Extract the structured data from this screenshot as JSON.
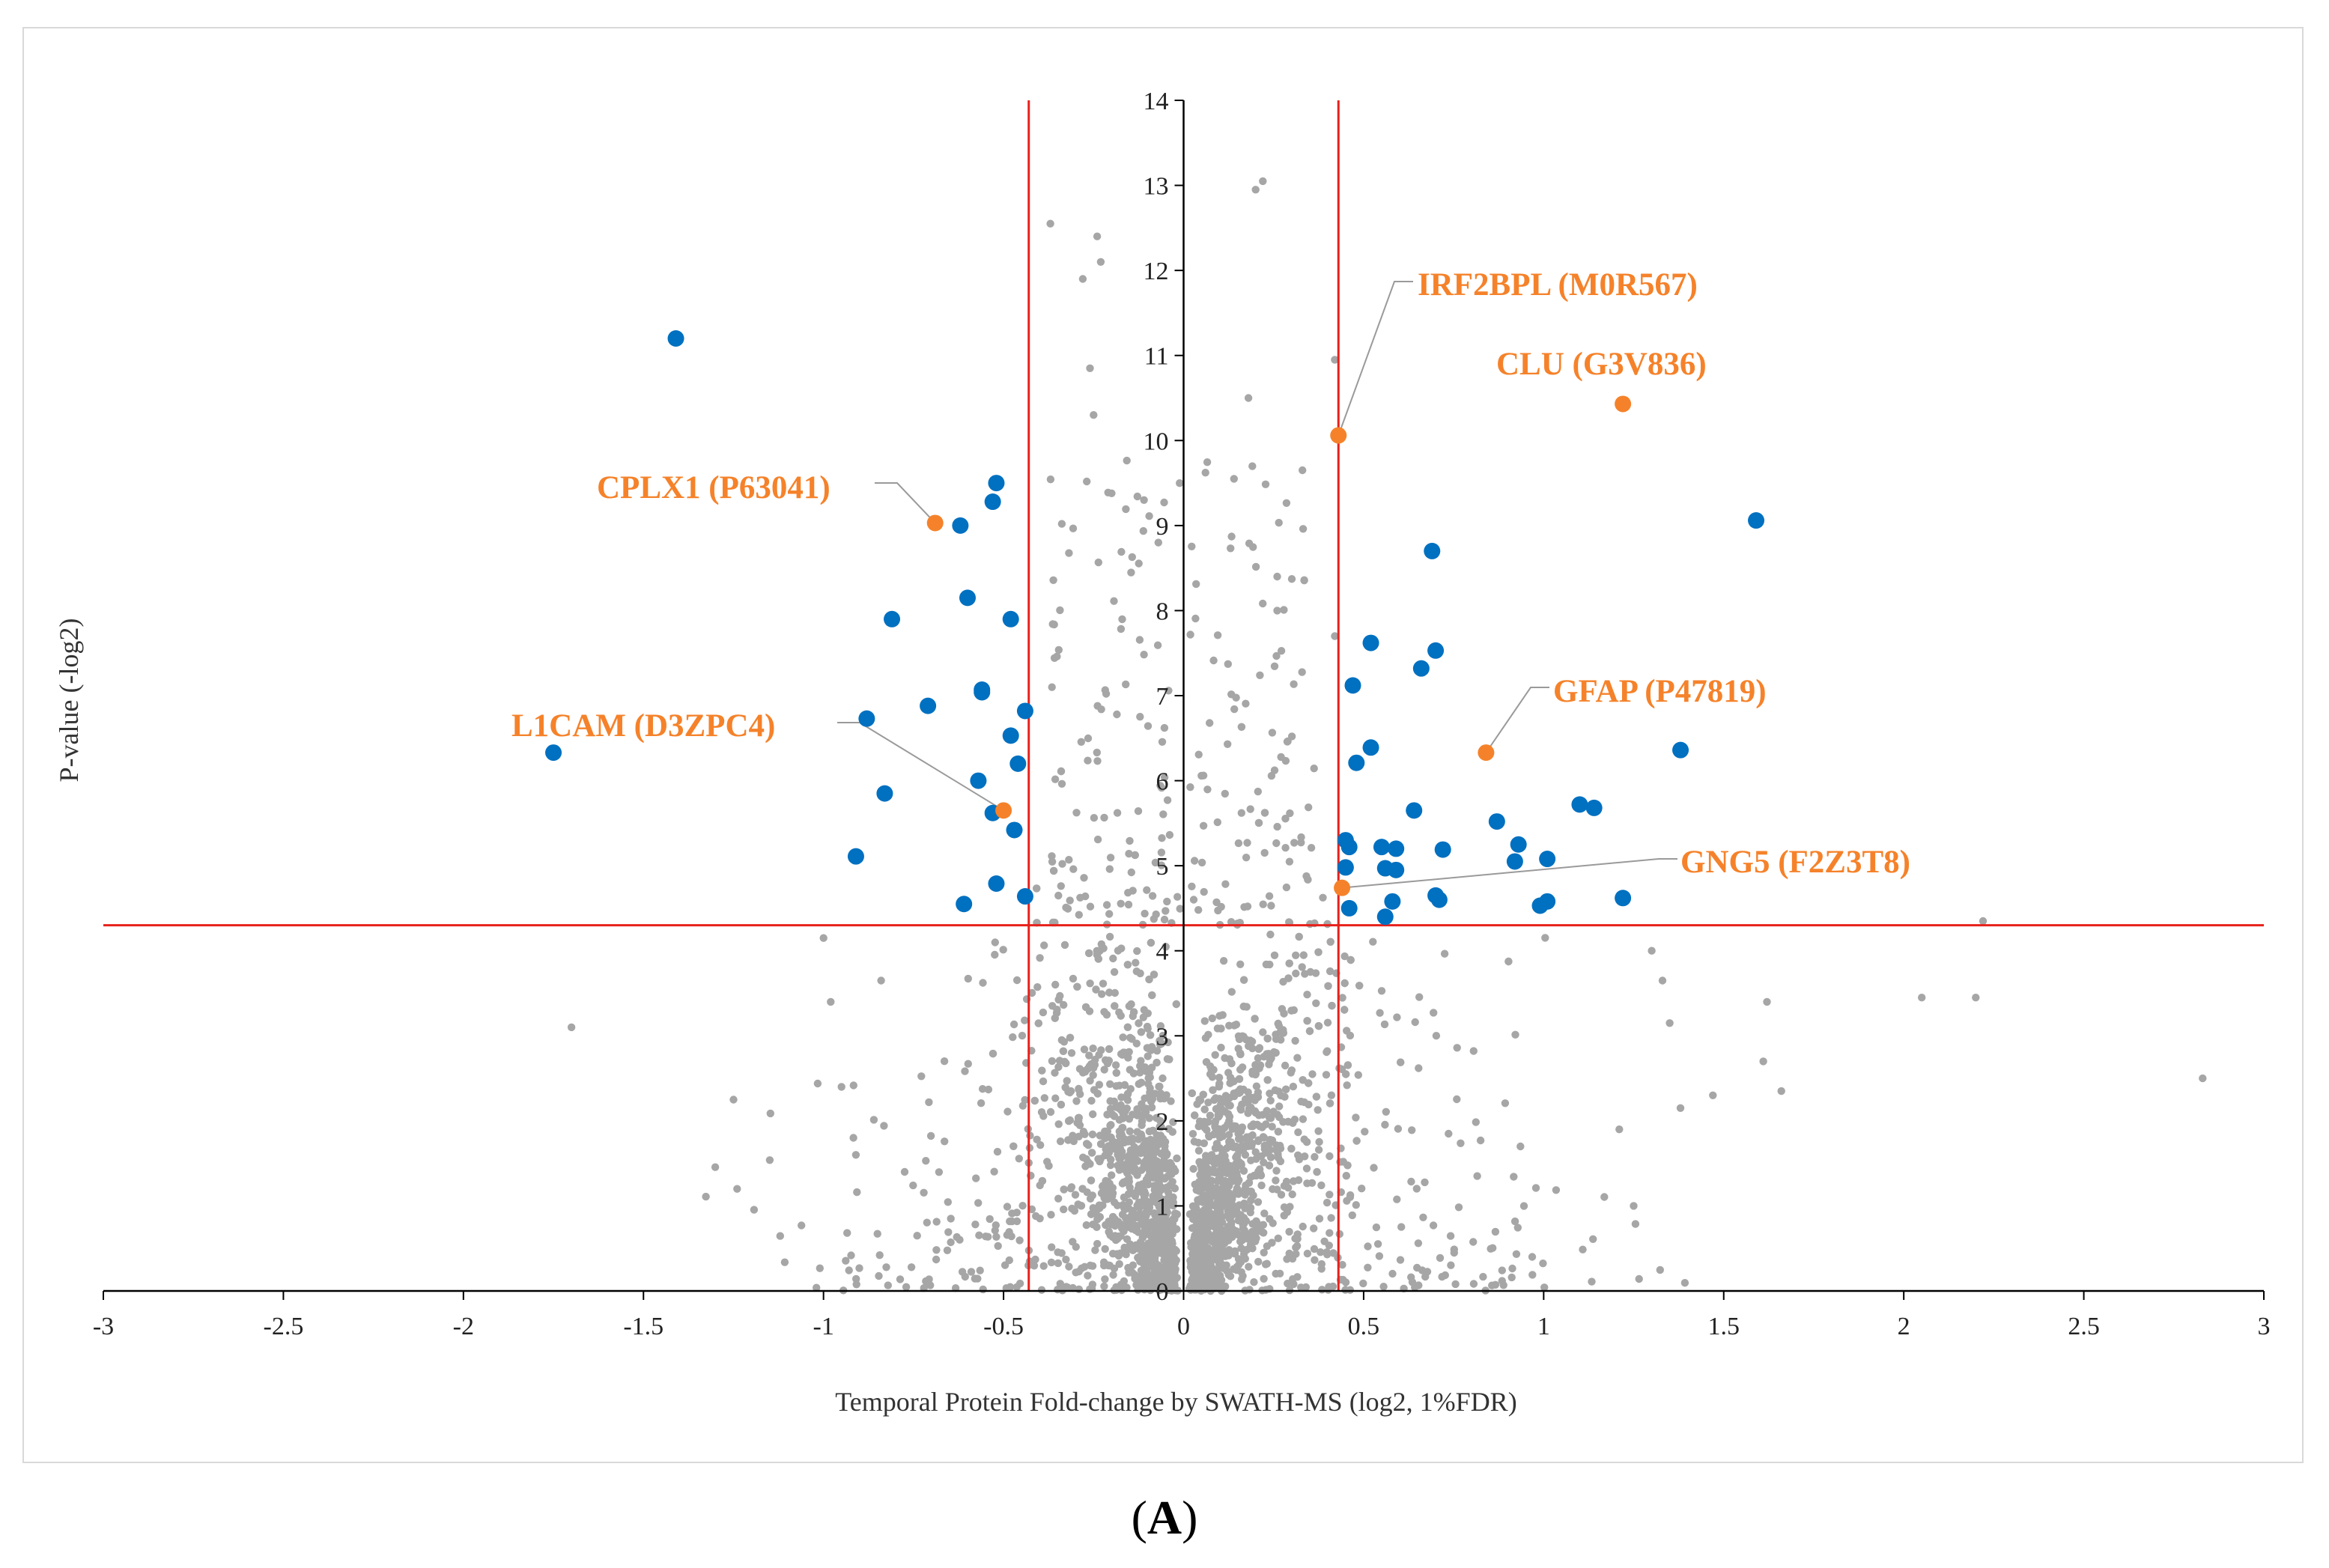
{
  "figure": {
    "panel_label": "A"
  },
  "chart_data": {
    "type": "scatter",
    "title": "",
    "xlabel": "Temporal Protein Fold-change by SWATH-MS (log2, 1%FDR)",
    "ylabel": "P-value (-log2)",
    "xlim": [
      -3,
      3
    ],
    "ylim": [
      0,
      14
    ],
    "x_ticks": [
      -3,
      -2.5,
      -2,
      -1.5,
      -1,
      -0.5,
      0,
      0.5,
      1,
      1.5,
      2,
      2.5,
      3
    ],
    "x_tick_labels": [
      "-3",
      "-2.5",
      "-2",
      "-1.5",
      "-1",
      "-0.5",
      "0",
      "0.5",
      "1",
      "1.5",
      "2",
      "2.5",
      "3"
    ],
    "y_ticks": [
      0,
      1,
      2,
      3,
      4,
      5,
      6,
      7,
      8,
      9,
      10,
      11,
      12,
      13,
      14
    ],
    "y_tick_labels": [
      "0",
      "1",
      "2",
      "3",
      "4",
      "5",
      "6",
      "7",
      "8",
      "9",
      "10",
      "11",
      "12",
      "13",
      "14"
    ],
    "grid": false,
    "legend": "none",
    "colors": {
      "nonsignificant": "#a6a6a6",
      "significant": "#0070c0",
      "highlighted": "#f5822a",
      "threshold": "#e8201b"
    },
    "thresholds": {
      "vertical": [
        -0.43,
        0.43
      ],
      "horizontal": 4.3
    },
    "series": [
      {
        "role": "significant",
        "points": [
          [
            -1.41,
            11.2
          ],
          [
            -1.75,
            6.33
          ],
          [
            -0.52,
            9.5
          ],
          [
            -0.53,
            9.28
          ],
          [
            -0.62,
            9.0
          ],
          [
            -0.6,
            8.15
          ],
          [
            -0.48,
            7.9
          ],
          [
            -0.81,
            7.9
          ],
          [
            -0.56,
            7.07
          ],
          [
            -0.56,
            7.04
          ],
          [
            -0.44,
            6.82
          ],
          [
            -0.71,
            6.88
          ],
          [
            -0.88,
            6.73
          ],
          [
            -0.48,
            6.53
          ],
          [
            -0.46,
            6.2
          ],
          [
            -0.57,
            6.0
          ],
          [
            -0.83,
            5.85
          ],
          [
            -0.53,
            5.62
          ],
          [
            -0.47,
            5.42
          ],
          [
            -0.91,
            5.11
          ],
          [
            -0.52,
            4.79
          ],
          [
            -0.44,
            4.64
          ],
          [
            -0.61,
            4.55
          ],
          [
            1.59,
            9.06
          ],
          [
            0.69,
            8.7
          ],
          [
            0.7,
            7.53
          ],
          [
            0.52,
            7.62
          ],
          [
            0.66,
            7.32
          ],
          [
            0.47,
            7.12
          ],
          [
            0.52,
            6.39
          ],
          [
            0.48,
            6.21
          ],
          [
            1.38,
            6.36
          ],
          [
            0.64,
            5.65
          ],
          [
            1.1,
            5.72
          ],
          [
            1.14,
            5.68
          ],
          [
            0.87,
            5.52
          ],
          [
            0.45,
            5.3
          ],
          [
            0.46,
            5.22
          ],
          [
            0.55,
            5.22
          ],
          [
            0.59,
            5.2
          ],
          [
            0.72,
            5.19
          ],
          [
            0.93,
            5.25
          ],
          [
            0.92,
            5.05
          ],
          [
            1.01,
            5.08
          ],
          [
            0.45,
            4.98
          ],
          [
            0.56,
            4.97
          ],
          [
            0.59,
            4.95
          ],
          [
            0.7,
            4.65
          ],
          [
            0.71,
            4.6
          ],
          [
            0.58,
            4.58
          ],
          [
            0.46,
            4.5
          ],
          [
            0.56,
            4.4
          ],
          [
            0.99,
            4.53
          ],
          [
            1.01,
            4.58
          ],
          [
            1.22,
            4.62
          ]
        ]
      },
      {
        "role": "highlighted",
        "points": [
          [
            -0.69,
            9.03
          ],
          [
            -0.5,
            5.65
          ],
          [
            0.43,
            10.06
          ],
          [
            1.22,
            10.43
          ],
          [
            0.84,
            6.33
          ],
          [
            0.44,
            4.74
          ]
        ]
      }
    ],
    "annotations": [
      {
        "label": "IRF2BPL (M0R567)",
        "x": 0.43,
        "y": 10.06
      },
      {
        "label": "CLU (G3V836)",
        "x": 1.22,
        "y": 10.43
      },
      {
        "label": "CPLX1 (P63041)",
        "x": -0.69,
        "y": 9.03
      },
      {
        "label": "GFAP (P47819)",
        "x": 0.84,
        "y": 6.33
      },
      {
        "label": "L1CAM (D3ZPC4)",
        "x": -0.5,
        "y": 5.65
      },
      {
        "label": "GNG5 (F2Z3T8)",
        "x": 0.44,
        "y": 4.74
      }
    ]
  }
}
